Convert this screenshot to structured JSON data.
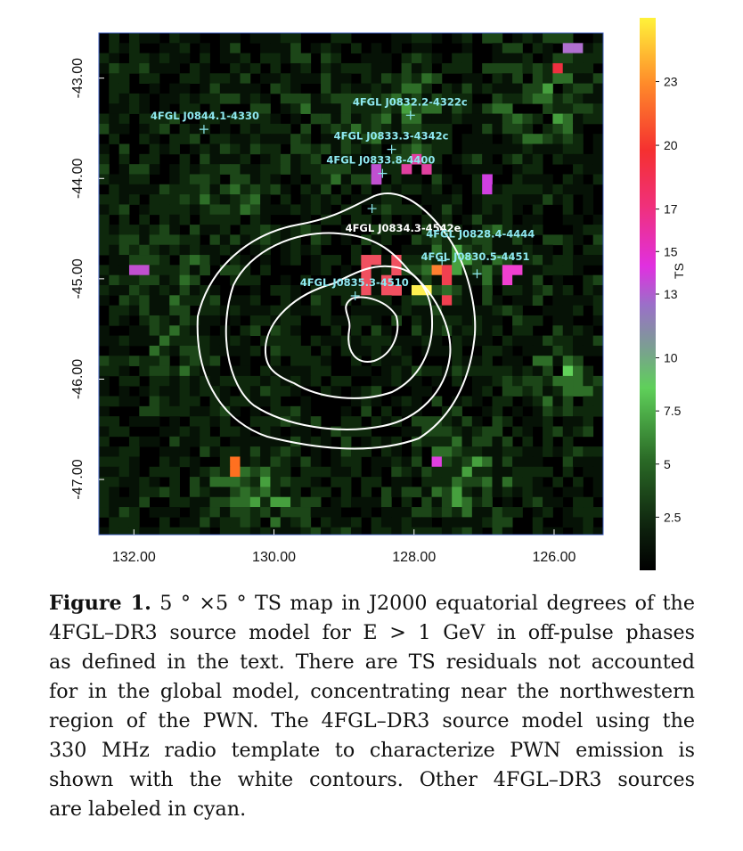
{
  "chart_data": {
    "type": "heatmap",
    "title": "",
    "xlabel": "",
    "ylabel": "",
    "x_tick_labels": [
      "132.00",
      "130.00",
      "128.00",
      "126.00"
    ],
    "x_ticks": [
      132,
      130,
      128,
      126
    ],
    "y_tick_labels": [
      "-43.00",
      "-44.00",
      "-45.00",
      "-46.00",
      "-47.00"
    ],
    "y_ticks": [
      -43,
      -44,
      -45,
      -46,
      -47
    ],
    "xlim": [
      132.5,
      125.3
    ],
    "ylim": [
      -47.55,
      -42.55
    ],
    "colorbar": {
      "label": "TS",
      "tick_labels": [
        "2.5",
        "5",
        "7.5",
        "10",
        "13",
        "15",
        "17",
        "20",
        "23"
      ],
      "ticks": [
        2.5,
        5,
        7.5,
        10,
        13,
        15,
        17,
        20,
        23
      ],
      "range": [
        0,
        26
      ],
      "colors": [
        "#000000",
        "#1a3a16",
        "#3a7a30",
        "#5bc24f",
        "#6adf64",
        "#a070c0",
        "#e040e0",
        "#f04050",
        "#ff8030",
        "#fff040"
      ]
    },
    "sources": [
      {
        "name": "4FGL J0844.1-4330",
        "ra": 131.0,
        "dec": -43.51
      },
      {
        "name": "4FGL J0832.2-4322c",
        "ra": 128.05,
        "dec": -43.37
      },
      {
        "name": "4FGL J0833.3-4342c",
        "ra": 128.32,
        "dec": -43.71
      },
      {
        "name": "4FGL J0833.8-4400",
        "ra": 128.45,
        "dec": -43.95
      },
      {
        "name": "4FGL J0834.3-4542e",
        "ra": 128.6,
        "dec": -44.3
      },
      {
        "name": "4FGL J0828.4-4444",
        "ra": 127.6,
        "dec": -44.82
      },
      {
        "name": "4FGL J0830.5-4451",
        "ra": 127.1,
        "dec": -44.95
      },
      {
        "name": "4FGL J0835.3-4510",
        "ra": 128.84,
        "dec": -45.17
      }
    ],
    "contours": "white contours: 4FGL-DR3 PWN model from 330 MHz radio template",
    "source_label_color": "#8ee8f0",
    "contour_color": "#ffffff"
  },
  "caption": {
    "label": "Figure 1.",
    "lines": [
      "5 ° ×5 ° TS map in J2000 equatorial degrees of the",
      "4FGL–DR3 source model for E > 1 GeV in off-pulse phases",
      "as defined in the text. There are TS residuals not accounted",
      "for in the global model, concentrating near the northwestern",
      "region of the PWN. The 4FGL–DR3 source model using the",
      "330 MHz radio template to characterize PWN emission is",
      "shown with the white contours. Other 4FGL–DR3 sources",
      "are labeled in cyan."
    ]
  }
}
